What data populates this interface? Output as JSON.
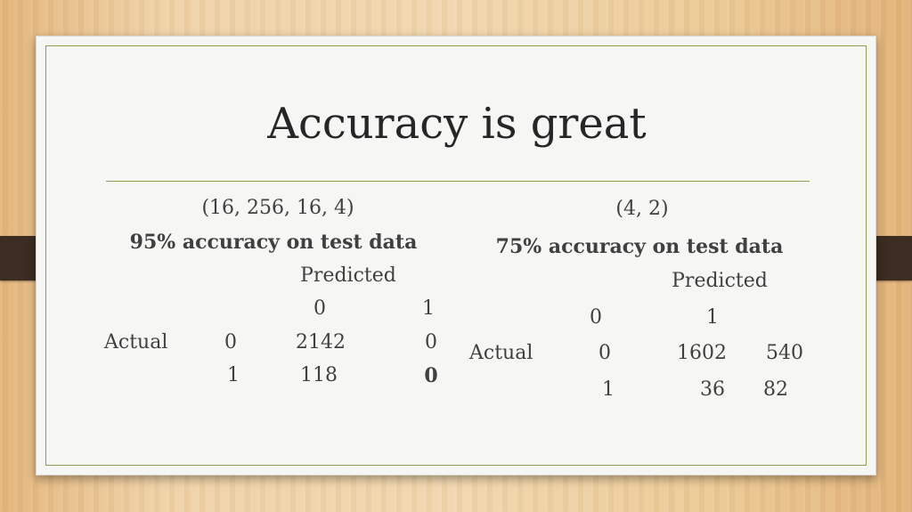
{
  "slide": {
    "title": "Accuracy is great"
  },
  "left_model": {
    "architecture": "(16, 256, 16, 4)",
    "accuracy_text": "95% accuracy on test data",
    "predicted_label": "Predicted",
    "actual_label": "Actual",
    "col_headers": [
      "0",
      "1"
    ],
    "row_headers": [
      "0",
      "1"
    ],
    "matrix": [
      [
        "2142",
        "0"
      ],
      [
        "118",
        "0"
      ]
    ]
  },
  "right_model": {
    "architecture": "(4, 2)",
    "accuracy_text": "75% accuracy on test data",
    "predicted_label": "Predicted",
    "actual_label": "Actual",
    "col_headers": [
      "0",
      "1"
    ],
    "row_headers": [
      "0",
      "1"
    ],
    "matrix": [
      [
        "1602",
        "540"
      ],
      [
        "36",
        "82"
      ]
    ]
  },
  "colors": {
    "accent_line": "#8da054",
    "text": "#404040",
    "title_text": "#262626",
    "strap": "#3c2c22"
  }
}
